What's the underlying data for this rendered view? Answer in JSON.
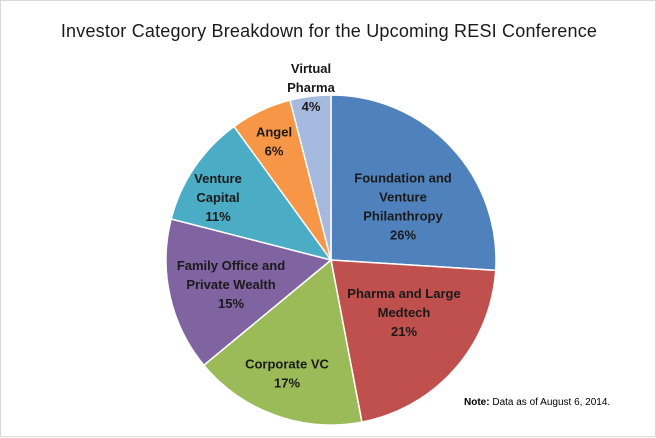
{
  "chart_data": {
    "type": "pie",
    "title": "Investor Category Breakdown for the Upcoming RESI Conference",
    "slices": [
      {
        "label": [
          "Foundation and",
          "Venture",
          "Philanthropy"
        ],
        "value_label": "26%",
        "value": 26,
        "color": "#4f81bd"
      },
      {
        "label": [
          "Pharma and Large",
          "Medtech"
        ],
        "value_label": "21%",
        "value": 21,
        "color": "#c0504d"
      },
      {
        "label": [
          "Corporate VC"
        ],
        "value_label": "17%",
        "value": 17,
        "color": "#9bbb59"
      },
      {
        "label": [
          "Family Office and",
          "Private Wealth"
        ],
        "value_label": "15%",
        "value": 15,
        "color": "#8064a2"
      },
      {
        "label": [
          "Venture",
          "Capital"
        ],
        "value_label": "11%",
        "value": 11,
        "color": "#4bacc6"
      },
      {
        "label": [
          "Angel"
        ],
        "value_label": "6%",
        "value": 6,
        "color": "#f79646"
      },
      {
        "label": [
          "Virtual",
          "Pharma"
        ],
        "value_label": "4%",
        "value": 4,
        "color": "#a6b9de"
      }
    ]
  },
  "note": {
    "prefix": "Note:",
    "text": "Data as of August 6, 2014."
  }
}
